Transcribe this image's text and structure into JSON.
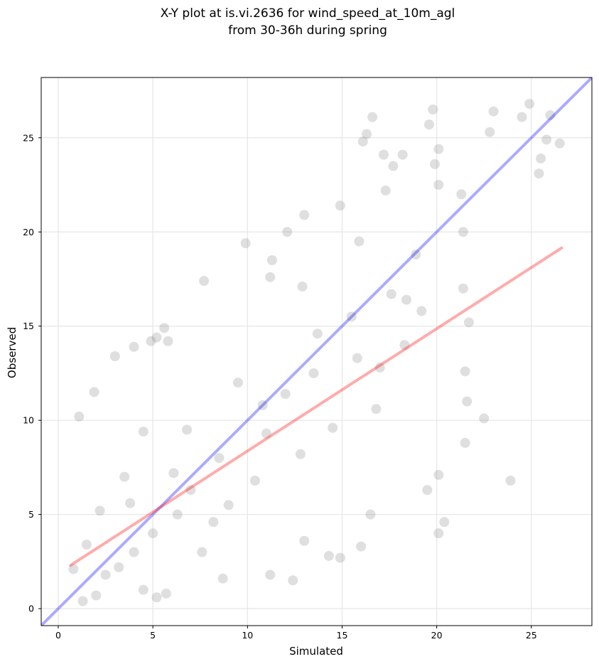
{
  "chart_data": {
    "type": "scatter",
    "title": "X-Y plot at is.vi.2636 for wind_speed_at_10m_agl\nfrom 30-36h during spring",
    "title_lines": [
      "X-Y plot at is.vi.2636 for wind_speed_at_10m_agl",
      "from 30-36h during spring"
    ],
    "xlabel": "Simulated",
    "ylabel": "Observed",
    "xlim": [
      -0.9,
      28.2
    ],
    "ylim": [
      -0.9,
      28.2
    ],
    "xticks": [
      0,
      5,
      10,
      15,
      20,
      25
    ],
    "yticks": [
      0,
      5,
      10,
      15,
      20,
      25
    ],
    "grid": true,
    "point_color": "#808080",
    "series": [
      {
        "kind": "scatter",
        "sample_points": [
          [
            0.8,
            2.1
          ],
          [
            1.1,
            10.2
          ],
          [
            1.9,
            11.5
          ],
          [
            3.0,
            13.4
          ],
          [
            4.0,
            13.9
          ],
          [
            4.5,
            9.4
          ],
          [
            4.9,
            14.2
          ],
          [
            5.2,
            14.4
          ],
          [
            5.6,
            14.9
          ],
          [
            5.8,
            14.2
          ],
          [
            7.7,
            17.4
          ],
          [
            9.9,
            19.4
          ],
          [
            12.1,
            20.0
          ],
          [
            13.0,
            20.9
          ],
          [
            14.9,
            21.4
          ],
          [
            16.6,
            26.1
          ],
          [
            16.3,
            25.2
          ],
          [
            16.1,
            24.8
          ],
          [
            17.2,
            24.1
          ],
          [
            18.2,
            24.1
          ],
          [
            17.7,
            23.5
          ],
          [
            19.8,
            26.5
          ],
          [
            19.6,
            25.7
          ],
          [
            19.9,
            23.6
          ],
          [
            20.1,
            24.4
          ],
          [
            20.1,
            22.5
          ],
          [
            22.8,
            25.3
          ],
          [
            23.0,
            26.4
          ],
          [
            24.5,
            26.1
          ],
          [
            24.9,
            26.8
          ],
          [
            26.0,
            26.2
          ],
          [
            26.5,
            24.7
          ],
          [
            25.5,
            23.9
          ],
          [
            25.4,
            23.1
          ],
          [
            25.8,
            24.9
          ],
          [
            21.3,
            22.0
          ],
          [
            21.4,
            20.0
          ],
          [
            21.4,
            17.0
          ],
          [
            21.5,
            12.6
          ],
          [
            21.6,
            11.0
          ],
          [
            21.5,
            8.8
          ],
          [
            21.7,
            15.2
          ],
          [
            22.5,
            10.1
          ],
          [
            23.9,
            6.8
          ],
          [
            20.4,
            4.6
          ],
          [
            20.1,
            4.0
          ],
          [
            19.5,
            6.3
          ],
          [
            20.1,
            7.1
          ],
          [
            16.5,
            5.0
          ],
          [
            16.0,
            3.3
          ],
          [
            14.9,
            2.7
          ],
          [
            14.3,
            2.8
          ],
          [
            13.0,
            3.6
          ],
          [
            12.4,
            1.5
          ],
          [
            11.2,
            1.8
          ],
          [
            8.7,
            1.6
          ],
          [
            5.7,
            0.8
          ],
          [
            5.2,
            0.6
          ],
          [
            4.5,
            1.0
          ],
          [
            1.3,
            0.4
          ],
          [
            2.0,
            0.7
          ],
          [
            17.0,
            12.8
          ],
          [
            18.3,
            14.0
          ],
          [
            12.9,
            17.1
          ],
          [
            11.2,
            17.6
          ],
          [
            11.3,
            18.5
          ],
          [
            15.9,
            19.5
          ],
          [
            17.3,
            22.2
          ],
          [
            18.9,
            18.8
          ],
          [
            15.5,
            15.5
          ],
          [
            13.7,
            14.6
          ],
          [
            10.8,
            10.8
          ],
          [
            8.5,
            8.0
          ],
          [
            7.0,
            6.3
          ],
          [
            6.3,
            5.0
          ],
          [
            5.0,
            4.0
          ],
          [
            4.0,
            3.0
          ],
          [
            3.2,
            2.2
          ],
          [
            2.5,
            1.8
          ],
          [
            9.5,
            12.0
          ],
          [
            12.0,
            11.4
          ],
          [
            14.5,
            9.6
          ],
          [
            16.8,
            10.6
          ],
          [
            18.4,
            16.4
          ],
          [
            19.2,
            15.8
          ],
          [
            6.8,
            9.5
          ],
          [
            7.6,
            3.0
          ],
          [
            9.0,
            5.5
          ],
          [
            10.4,
            6.8
          ],
          [
            12.8,
            8.2
          ],
          [
            3.5,
            7.0
          ],
          [
            2.2,
            5.2
          ],
          [
            1.5,
            3.4
          ],
          [
            3.8,
            5.6
          ],
          [
            6.1,
            7.2
          ],
          [
            8.2,
            4.6
          ],
          [
            11.0,
            9.3
          ],
          [
            13.5,
            12.5
          ],
          [
            15.8,
            13.3
          ],
          [
            17.6,
            16.7
          ]
        ]
      },
      {
        "kind": "line",
        "name": "",
        "color": "#0000ff",
        "x": [
          -0.9,
          28.2
        ],
        "y": [
          -0.9,
          28.2
        ]
      },
      {
        "kind": "line",
        "name": "",
        "color": "#ff0000",
        "x": [
          0.65,
          26.6
        ],
        "y": [
          2.3,
          19.15
        ]
      }
    ]
  }
}
